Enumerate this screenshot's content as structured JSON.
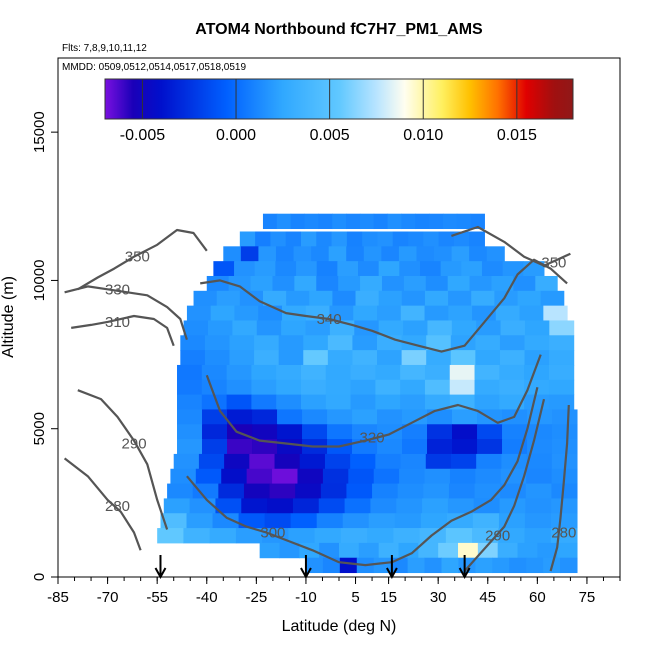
{
  "chart_data": {
    "type": "heatmap",
    "title": "ATOM4 Northbound fC7H7_PM1_AMS",
    "flights_text": "Flts: 7,8,9,10,11,12",
    "dates_text": "MMDD: 0509,0512,0514,0517,0518,0519",
    "xlabel": "Latitude (deg N)",
    "ylabel": "Altitude (m)",
    "xlim": [
      -85,
      85
    ],
    "ylim": [
      0,
      17500
    ],
    "x_ticks": [
      -85,
      -70,
      -55,
      -40,
      -25,
      -10,
      5,
      15,
      30,
      45,
      60,
      75
    ],
    "y_ticks": [
      0,
      5000,
      10000,
      15000
    ],
    "colorbar": {
      "range": [
        -0.007,
        0.018
      ],
      "ticks": [
        "-0.005",
        "0.000",
        "0.005",
        "0.010",
        "0.015"
      ],
      "tick_values": [
        -0.005,
        0.0,
        0.005,
        0.01,
        0.015
      ],
      "colors": [
        "#7a10e0",
        "#1a00b8",
        "#0010cc",
        "#0060ff",
        "#30a8ff",
        "#60c8ff",
        "#b8e4ff",
        "#fffef0",
        "#fff060",
        "#ffc000",
        "#ff7000",
        "#e00000",
        "#a01010",
        "#901818"
      ],
      "stops": [
        0,
        0.06,
        0.12,
        0.26,
        0.38,
        0.5,
        0.58,
        0.64,
        0.72,
        0.78,
        0.84,
        0.9,
        0.96,
        1
      ]
    },
    "curtain_rows": [
      {
        "alt": 12000,
        "x0": -23,
        "x1": 44,
        "values": [
          0.001,
          0.0015,
          0.001,
          0.0012,
          0.001,
          0.0014,
          0.0011,
          0.0013,
          0.001,
          0.0015,
          0.0012,
          0.001,
          0.0011,
          0.0013,
          0.0012,
          0.001
        ]
      },
      {
        "alt": 11400,
        "x0": -30,
        "x1": 44,
        "values": [
          0.002,
          0.0008,
          0.0015,
          0.001,
          0.002,
          0.0012,
          0.0018,
          0.0009,
          0.0014,
          0.0016,
          0.001,
          0.0012,
          0.0015,
          0.0011,
          0.0013,
          0.001
        ]
      },
      {
        "alt": 10900,
        "x0": -35,
        "x1": 50,
        "values": [
          0.0014,
          -0.002,
          0.0018,
          0.001,
          0.0016,
          0.0012,
          0.0022,
          0.001,
          0.0017,
          0.0011,
          0.0019,
          0.0013,
          0.0015,
          0.0021,
          0.0012,
          0.0016
        ]
      },
      {
        "alt": 10400,
        "x0": -38,
        "x1": 62,
        "values": [
          -0.001,
          0.0016,
          0.002,
          0.0012,
          0.0018,
          0.0009,
          0.0021,
          0.0013,
          0.0024,
          0.0015,
          0.001,
          0.0019,
          0.0022,
          0.0013,
          0.0017,
          0.002
        ]
      },
      {
        "alt": 9900,
        "x0": -40,
        "x1": 66,
        "values": [
          0.0012,
          0.0018,
          0.0022,
          0.0015,
          0.0026,
          0.0011,
          0.0019,
          0.0028,
          0.0016,
          0.0021,
          0.0014,
          0.0025,
          0.0018,
          0.0022,
          0.0015,
          0.003
        ]
      },
      {
        "alt": 9400,
        "x0": -44,
        "x1": 68,
        "values": [
          0.0015,
          0.0021,
          0.0016,
          0.0028,
          0.0019,
          0.0024,
          0.0013,
          0.0031,
          0.0022,
          0.0017,
          0.0026,
          0.0018,
          0.0029,
          0.002,
          0.0024,
          0.0019
        ]
      },
      {
        "alt": 8900,
        "x0": -46,
        "x1": 69,
        "values": [
          0.0016,
          0.0024,
          0.0019,
          0.0014,
          0.0027,
          0.0032,
          0.0018,
          0.0025,
          0.0021,
          0.0036,
          0.0019,
          0.0023,
          0.0017,
          0.0028,
          0.0022,
          0.0075
        ]
      },
      {
        "alt": 8400,
        "x0": -47,
        "x1": 71,
        "values": [
          0.0014,
          0.0019,
          0.0026,
          0.0017,
          0.0024,
          0.0021,
          0.0033,
          0.0018,
          0.0027,
          0.0022,
          0.0039,
          0.0025,
          0.002,
          0.0031,
          0.0024,
          0.0065
        ]
      },
      {
        "alt": 7900,
        "x0": -48,
        "x1": 71,
        "values": [
          0.0012,
          0.0017,
          0.0022,
          0.0028,
          0.0019,
          0.0025,
          0.0042,
          0.002,
          0.0031,
          0.0026,
          0.0048,
          0.0023,
          0.0029,
          0.0021,
          0.0027,
          0.0032
        ]
      },
      {
        "alt": 7400,
        "x0": -48,
        "x1": 71,
        "values": [
          0.0008,
          0.0014,
          0.0021,
          0.0032,
          0.0019,
          0.0056,
          0.0028,
          0.0035,
          0.0023,
          0.0061,
          0.0029,
          0.0052,
          0.0025,
          0.0033,
          0.0022,
          0.0028
        ]
      },
      {
        "alt": 6900,
        "x0": -49,
        "x1": 71,
        "values": [
          0.0005,
          0.0012,
          0.0018,
          0.0024,
          0.0028,
          0.0035,
          0.0026,
          0.0031,
          0.0027,
          0.0038,
          0.0032,
          0.0085,
          0.0036,
          0.0029,
          0.0024,
          0.003
        ]
      },
      {
        "alt": 6400,
        "x0": -49,
        "x1": 71,
        "values": [
          0.0006,
          0.001,
          0.0015,
          0.0021,
          0.0025,
          0.0031,
          0.0027,
          0.0023,
          0.0034,
          0.0026,
          0.0045,
          0.0078,
          0.0028,
          0.0032,
          0.0027,
          0.0025
        ]
      },
      {
        "alt": 5900,
        "x0": -49,
        "x1": 71,
        "values": [
          0.001,
          0.0003,
          -0.001,
          0.0006,
          0.0014,
          0.0022,
          0.0026,
          0.0019,
          0.0024,
          0.0021,
          0.0028,
          0.0034,
          0.0023,
          0.0027,
          0.002,
          0.0019
        ]
      },
      {
        "alt": 5400,
        "x0": -49,
        "x1": 72,
        "values": [
          0.0012,
          -0.002,
          -0.0035,
          -0.003,
          0.0004,
          0.0012,
          0.0018,
          0.0022,
          0.0016,
          0.0019,
          0.0014,
          0.0021,
          0.0017,
          0.0015,
          0.0018,
          0.0016
        ]
      },
      {
        "alt": 4900,
        "x0": -49,
        "x1": 72,
        "values": [
          0.0015,
          -0.003,
          -0.0055,
          -0.005,
          -0.0038,
          -0.0015,
          0.0004,
          0.0011,
          0.0014,
          0.0008,
          -0.0025,
          -0.0042,
          -0.0015,
          0.0009,
          0.0012,
          0.0014
        ]
      },
      {
        "alt": 4400,
        "x0": -49,
        "x1": 72,
        "values": [
          0.0018,
          -0.002,
          -0.006,
          -0.0058,
          -0.0046,
          -0.0028,
          -0.0009,
          0.0006,
          0.0012,
          0.0005,
          -0.0032,
          -0.0038,
          -0.0024,
          0.0007,
          0.0013,
          0.0015
        ]
      },
      {
        "alt": 3900,
        "x0": -50,
        "x1": 72,
        "values": [
          0.0016,
          -0.0015,
          -0.0048,
          -0.0065,
          -0.0052,
          -0.0036,
          -0.0018,
          -0.0005,
          0.0008,
          0.0011,
          -0.0022,
          -0.0018,
          0.0009,
          0.0014,
          0.0012,
          0.0016
        ]
      },
      {
        "alt": 3400,
        "x0": -51,
        "x1": 72,
        "values": [
          0.0014,
          -0.0008,
          -0.0042,
          -0.0062,
          -0.0068,
          -0.0049,
          -0.0026,
          -0.001,
          0.0003,
          0.0012,
          0.0015,
          0.0009,
          0.0013,
          0.0016,
          0.0011,
          0.0014
        ]
      },
      {
        "alt": 2900,
        "x0": -52,
        "x1": 72,
        "values": [
          0.0012,
          0.0006,
          -0.0028,
          -0.0051,
          -0.0058,
          -0.0046,
          -0.0027,
          -0.0008,
          0.0009,
          0.0014,
          0.0017,
          0.0011,
          0.0015,
          0.0013,
          0.0017,
          0.0012
        ]
      },
      {
        "alt": 2400,
        "x0": -53,
        "x1": 72,
        "values": [
          0.0022,
          0.0016,
          -0.0012,
          -0.0038,
          -0.0042,
          -0.0031,
          -0.0014,
          0.0002,
          0.0013,
          0.0017,
          0.0022,
          0.0018,
          0.0014,
          0.0019,
          0.0016,
          0.0018
        ]
      },
      {
        "alt": 1900,
        "x0": -54,
        "x1": 72,
        "values": [
          0.0045,
          0.0021,
          0.0012,
          -0.0008,
          -0.0014,
          -0.0005,
          0.0009,
          0.0016,
          0.0021,
          0.0019,
          0.0024,
          0.0028,
          0.0035,
          0.0022,
          0.0018,
          0.002
        ]
      },
      {
        "alt": 1400,
        "x0": -55,
        "x1": 72,
        "values": [
          0.0055,
          0.0035,
          0.0028,
          0.0021,
          0.0018,
          0.0022,
          0.0026,
          0.0031,
          0.0027,
          0.0033,
          0.0038,
          0.0052,
          0.0042,
          0.0026,
          0.0022,
          0.0028
        ]
      },
      {
        "alt": 900,
        "x0": -24,
        "x1": 72,
        "values": [
          0.0022,
          0.0018,
          0.0025,
          0.0016,
          0.0028,
          0.0021,
          0.0033,
          0.0024,
          0.0038,
          0.0058,
          0.0095,
          0.0062,
          0.0031,
          0.0022,
          0.0019,
          0.0024
        ]
      },
      {
        "alt": 400,
        "x0": -10,
        "x1": 72,
        "values": [
          0.0016,
          0.0011,
          -0.004,
          0.0014,
          0.0018,
          0.0012,
          0.0021,
          0.0016,
          0.0024,
          0.0018,
          0.0022,
          0.0019,
          0.0015,
          0.0017,
          0.002,
          0.0016
        ]
      }
    ],
    "contours": [
      {
        "level": "350",
        "label_at": [
          -61,
          10800
        ],
        "points": [
          [
            -79,
            9700
          ],
          [
            -73,
            10100
          ],
          [
            -68,
            10400
          ],
          [
            -62,
            10800
          ],
          [
            -55,
            11200
          ],
          [
            -49,
            11700
          ],
          [
            -44,
            11600
          ],
          [
            -40,
            11000
          ]
        ]
      },
      {
        "level": "330",
        "label_at": [
          -67,
          9700
        ],
        "points": [
          [
            -83,
            9600
          ],
          [
            -76,
            9800
          ],
          [
            -70,
            9700
          ],
          [
            -64,
            9600
          ],
          [
            -58,
            9500
          ],
          [
            -52,
            9100
          ],
          [
            -48,
            8700
          ],
          [
            -46,
            8000
          ]
        ]
      },
      {
        "level": "310",
        "label_at": [
          -67,
          8600
        ],
        "points": [
          [
            -81,
            8400
          ],
          [
            -75,
            8500
          ],
          [
            -70,
            8600
          ],
          [
            -62,
            8800
          ],
          [
            -56,
            8700
          ],
          [
            -52,
            8400
          ],
          [
            -50,
            7800
          ]
        ]
      },
      {
        "level": "290",
        "label_at": [
          -62,
          4500
        ],
        "points": [
          [
            -79,
            6300
          ],
          [
            -72,
            6000
          ],
          [
            -67,
            5400
          ],
          [
            -62,
            4600
          ],
          [
            -58,
            3800
          ],
          [
            -55,
            2600
          ],
          [
            -52,
            1600
          ]
        ]
      },
      {
        "level": "280",
        "label_at": [
          -67,
          2400
        ],
        "points": [
          [
            -83,
            4000
          ],
          [
            -76,
            3400
          ],
          [
            -70,
            2600
          ],
          [
            -66,
            2200
          ],
          [
            -62,
            1500
          ],
          [
            -60,
            900
          ]
        ]
      },
      {
        "level": "340",
        "label_at": [
          -3,
          8700
        ],
        "points": [
          [
            -42,
            9900
          ],
          [
            -36,
            10000
          ],
          [
            -30,
            9800
          ],
          [
            -24,
            9300
          ],
          [
            -16,
            8900
          ],
          [
            -10,
            8800
          ],
          [
            -3,
            8700
          ],
          [
            4,
            8500
          ],
          [
            10,
            8300
          ],
          [
            17,
            8000
          ],
          [
            24,
            7800
          ],
          [
            31,
            7600
          ],
          [
            38,
            7800
          ],
          [
            44,
            8600
          ],
          [
            50,
            9400
          ],
          [
            54,
            10200
          ],
          [
            59,
            10700
          ],
          [
            64,
            10400
          ],
          [
            69,
            9900
          ]
        ]
      },
      {
        "level": "320",
        "label_at": [
          10,
          4700
        ],
        "points": [
          [
            -40,
            6800
          ],
          [
            -36,
            5600
          ],
          [
            -31,
            4900
          ],
          [
            -24,
            4600
          ],
          [
            -16,
            4500
          ],
          [
            -8,
            4400
          ],
          [
            0,
            4400
          ],
          [
            8,
            4600
          ],
          [
            15,
            4800
          ],
          [
            22,
            5200
          ],
          [
            29,
            5600
          ],
          [
            36,
            5800
          ],
          [
            42,
            5600
          ],
          [
            48,
            5200
          ],
          [
            53,
            5400
          ],
          [
            57,
            6300
          ],
          [
            61,
            7500
          ]
        ]
      },
      {
        "level": "300",
        "label_at": [
          -20,
          1500
        ],
        "points": [
          [
            -46,
            3400
          ],
          [
            -40,
            2600
          ],
          [
            -34,
            2000
          ],
          [
            -28,
            1700
          ],
          [
            -22,
            1500
          ],
          [
            -15,
            1200
          ],
          [
            -8,
            900
          ],
          [
            0,
            500
          ],
          [
            8,
            400
          ],
          [
            16,
            500
          ],
          [
            22,
            800
          ],
          [
            28,
            1400
          ],
          [
            34,
            1900
          ],
          [
            40,
            2200
          ],
          [
            46,
            2600
          ],
          [
            50,
            3100
          ],
          [
            54,
            3900
          ],
          [
            57,
            5000
          ],
          [
            60,
            6400
          ]
        ]
      },
      {
        "level": "290",
        "label_at": [
          48,
          1400
        ],
        "points": [
          [
            38,
            200
          ],
          [
            42,
            700
          ],
          [
            46,
            1200
          ],
          [
            50,
            1700
          ],
          [
            53,
            2400
          ],
          [
            56,
            3400
          ],
          [
            59,
            4600
          ],
          [
            62,
            6000
          ]
        ]
      },
      {
        "level": "280",
        "label_at": [
          68,
          1500
        ],
        "points": [
          [
            64,
            200
          ],
          [
            66,
            1000
          ],
          [
            67,
            2000
          ],
          [
            68,
            3200
          ],
          [
            69,
            4500
          ],
          [
            69.5,
            5800
          ]
        ]
      },
      {
        "level": "350",
        "label_at": [
          65,
          10600
        ],
        "points": [
          [
            34,
            11500
          ],
          [
            42,
            11800
          ],
          [
            50,
            11300
          ],
          [
            56,
            10800
          ],
          [
            62,
            10500
          ],
          [
            66,
            10700
          ],
          [
            70,
            10900
          ]
        ]
      }
    ],
    "flight_arrows": [
      -54,
      -10,
      16,
      38
    ]
  }
}
